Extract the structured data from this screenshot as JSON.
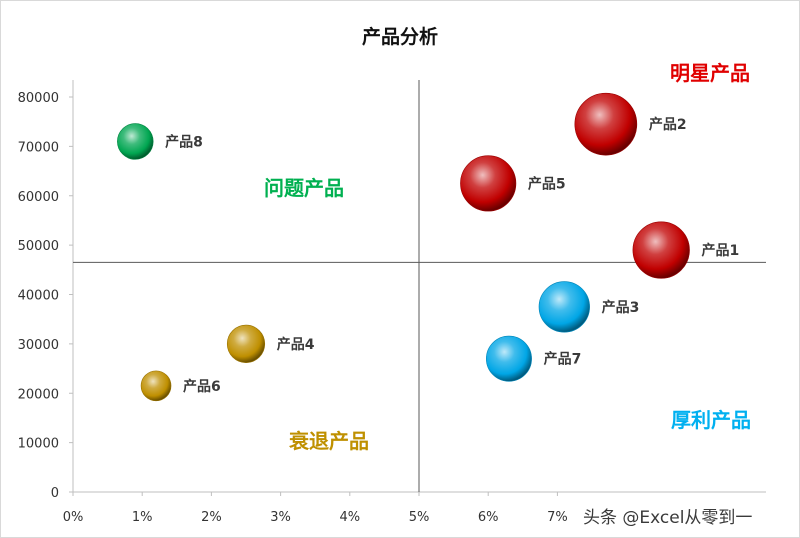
{
  "chart_data": {
    "type": "bubble",
    "title": "产品分析",
    "xlabel": "",
    "ylabel": "",
    "xlim": [
      0,
      0.1
    ],
    "ylim": [
      0,
      80000
    ],
    "x_ticks": [
      0,
      0.01,
      0.02,
      0.03,
      0.04,
      0.05,
      0.06,
      0.07
    ],
    "x_tick_labels": [
      "0%",
      "1%",
      "2%",
      "3%",
      "4%",
      "5%",
      "6%",
      "7%"
    ],
    "y_ticks": [
      0,
      10000,
      20000,
      30000,
      40000,
      50000,
      60000,
      70000,
      80000
    ],
    "y_tick_labels": [
      "0",
      "10000",
      "20000",
      "30000",
      "40000",
      "50000",
      "60000",
      "70000",
      "80000"
    ],
    "divider": {
      "x": 0.05,
      "y": 46500
    },
    "grid": false,
    "points": [
      {
        "label": "产品1",
        "x": 0.085,
        "y": 49000,
        "size": 25,
        "color": "#c00000"
      },
      {
        "label": "产品2",
        "x": 0.077,
        "y": 74500,
        "size": 30,
        "color": "#c00000"
      },
      {
        "label": "产品3",
        "x": 0.071,
        "y": 37500,
        "size": 20,
        "color": "#00a6e6"
      },
      {
        "label": "产品4",
        "x": 0.025,
        "y": 30000,
        "size": 11,
        "color": "#bf8f00"
      },
      {
        "label": "产品5",
        "x": 0.06,
        "y": 62500,
        "size": 24,
        "color": "#c00000"
      },
      {
        "label": "产品6",
        "x": 0.012,
        "y": 21500,
        "size": 7,
        "color": "#bf8f00"
      },
      {
        "label": "产品7",
        "x": 0.063,
        "y": 27000,
        "size": 16,
        "color": "#00a6e6"
      },
      {
        "label": "产品8",
        "x": 0.009,
        "y": 71000,
        "size": 10,
        "color": "#00a651"
      }
    ],
    "quadrant_labels": [
      {
        "id": "star",
        "text": "明星产品",
        "color": "#e00000"
      },
      {
        "id": "question",
        "text": "问题产品",
        "color": "#00b050"
      },
      {
        "id": "decline",
        "text": "衰退产品",
        "color": "#bf9000"
      },
      {
        "id": "profit",
        "text": "厚利产品",
        "color": "#00b0f0"
      }
    ]
  },
  "watermark": "头条 @Excel从零到一"
}
